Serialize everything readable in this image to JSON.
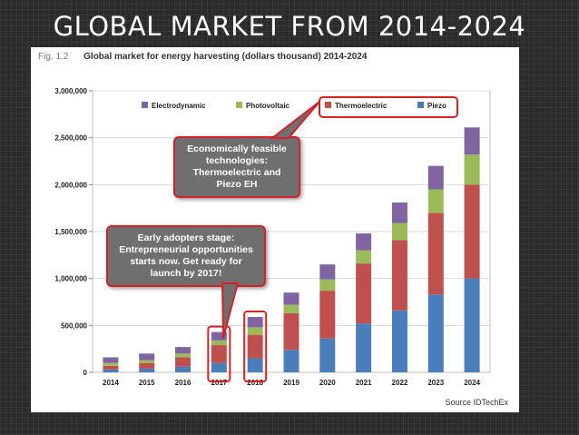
{
  "slide_title": "GLOBAL MARKET FROM 2014-2024",
  "figure": {
    "fig_label": "Fig. 1.2",
    "title": "Global market for energy harvesting (dollars thousand) 2014-2024",
    "source": "Source IDTechEx"
  },
  "callouts": {
    "feasible": "Economically feasible technologies: Thermoelectric and Piezo EH",
    "early": "Early adopters stage: Entrepreneurial opportunities starts now. Get ready for launch by 2017!"
  },
  "colors": {
    "Piezo": "#4a7ebb",
    "Thermoelectric": "#c0504d",
    "Photovoltaic": "#9bbb59",
    "Electrodynamic": "#8064a2",
    "highlight": "#d81f26"
  },
  "chart_data": {
    "type": "bar",
    "stacked": true,
    "title": "Global market for energy harvesting (dollars thousand) 2014-2024",
    "categories": [
      "2014",
      "2015",
      "2016",
      "2017",
      "2018",
      "2019",
      "2020",
      "2021",
      "2022",
      "2023",
      "2024"
    ],
    "series": [
      {
        "name": "Piezo",
        "values": [
          30000,
          40000,
          60000,
          100000,
          150000,
          240000,
          360000,
          520000,
          660000,
          830000,
          1000000
        ]
      },
      {
        "name": "Thermoelectric",
        "values": [
          40000,
          60000,
          100000,
          190000,
          250000,
          390000,
          510000,
          640000,
          750000,
          870000,
          1000000
        ]
      },
      {
        "name": "Photovoltaic",
        "values": [
          30000,
          30000,
          40000,
          50000,
          80000,
          90000,
          120000,
          140000,
          180000,
          250000,
          320000
        ]
      },
      {
        "name": "Electrodynamic",
        "values": [
          60000,
          70000,
          70000,
          90000,
          110000,
          130000,
          160000,
          180000,
          220000,
          250000,
          290000
        ]
      }
    ],
    "legend_order": [
      "Electrodynamic",
      "Photovoltaic",
      "Thermoelectric",
      "Piezo"
    ],
    "y_ticks": [
      "0",
      "500,000",
      "1,000,000",
      "1,500,000",
      "2,000,000",
      "2,500,000",
      "3,000,000"
    ],
    "ylim": [
      0,
      3000000
    ],
    "highlighted_categories": [
      "2017",
      "2018"
    ],
    "legend_position": "top"
  }
}
